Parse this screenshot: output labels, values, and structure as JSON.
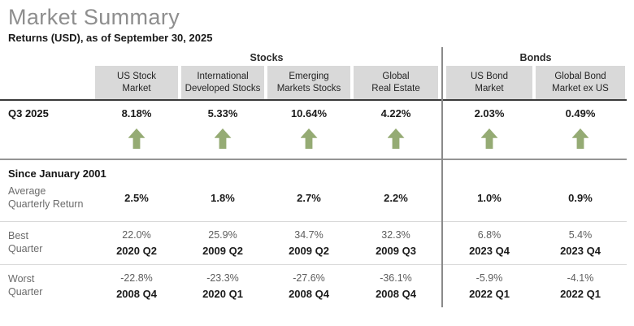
{
  "header": {
    "title": "Market Summary",
    "subtitle": "Returns (USD), as of September 30, 2025"
  },
  "groups": {
    "stocks": "Stocks",
    "bonds": "Bonds"
  },
  "columns": [
    {
      "line1": "US Stock",
      "line2": "Market"
    },
    {
      "line1": "International",
      "line2": "Developed Stocks"
    },
    {
      "line1": "Emerging",
      "line2": "Markets Stocks"
    },
    {
      "line1": "Global",
      "line2": "Real Estate"
    },
    {
      "line1": "US Bond",
      "line2": "Market"
    },
    {
      "line1": "Global Bond",
      "line2": "Market ex US"
    }
  ],
  "rows": {
    "q3": {
      "label": "Q3 2025",
      "values": [
        "8.18%",
        "5.33%",
        "10.64%",
        "4.22%",
        "2.03%",
        "0.49%"
      ],
      "direction_icon": "up-arrow"
    },
    "since_label": "Since January 2001",
    "average": {
      "label1": "Average",
      "label2": "Quarterly Return",
      "values": [
        "2.5%",
        "1.8%",
        "2.7%",
        "2.2%",
        "1.0%",
        "0.9%"
      ]
    },
    "best": {
      "label1": "Best",
      "label2": "Quarter",
      "values": [
        "22.0%",
        "25.9%",
        "34.7%",
        "32.3%",
        "6.8%",
        "5.4%"
      ],
      "quarters": [
        "2020 Q2",
        "2009 Q2",
        "2009 Q2",
        "2009 Q3",
        "2023 Q4",
        "2023 Q4"
      ]
    },
    "worst": {
      "label1": "Worst",
      "label2": "Quarter",
      "values": [
        "-22.8%",
        "-23.3%",
        "-27.6%",
        "-36.1%",
        "-5.9%",
        "-4.1%"
      ],
      "quarters": [
        "2008 Q4",
        "2020 Q1",
        "2008 Q4",
        "2008 Q4",
        "2022 Q1",
        "2022 Q1"
      ]
    }
  },
  "colors": {
    "accent_green": "#95ab74",
    "header_bg": "#d9d9d9",
    "title_gray": "#8e8e8e"
  }
}
